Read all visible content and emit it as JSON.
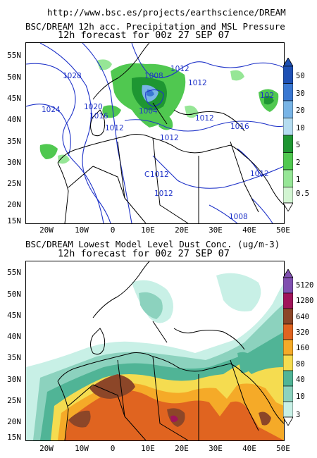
{
  "header": {
    "url": "http://www.bsc.es/projects/earthscience/DREAM"
  },
  "panel_top": {
    "title_line1": "BSC/DREAM 12h acc. Precipitation and MSL Pressure",
    "title_line2": "12h forecast for 00z 27 SEP 07",
    "colorbar": {
      "labels": [
        "50",
        "30",
        "20",
        "10",
        "5",
        "2",
        "1",
        "0.5"
      ],
      "colors": [
        "#1e50b4",
        "#3a78d2",
        "#78b4e6",
        "#b4dcf0",
        "#1e9632",
        "#50c850",
        "#96e696",
        "#d2f5d2"
      ]
    },
    "isobar_labels": [
      "1028",
      "1008",
      "1012",
      "1024",
      "1020",
      "1016",
      "1004",
      "1012",
      "1012",
      "1016",
      "1012",
      "1012",
      "1012",
      "1012",
      "1008",
      "1012",
      "102",
      "C"
    ]
  },
  "panel_bottom": {
    "title_line1": "BSC/DREAM Lowest Model Level Dust Conc. (ug/m-3)",
    "title_line2": "12h forecast for 00z 27 SEP 07",
    "colorbar": {
      "labels": [
        "5120",
        "1280",
        "640",
        "320",
        "160",
        "80",
        "40",
        "10",
        "3"
      ],
      "colors": [
        "#8050b0",
        "#a0145a",
        "#8c4628",
        "#e06420",
        "#f5aa28",
        "#f5dc50",
        "#50b496",
        "#8cd2be",
        "#c8f0e6"
      ]
    }
  },
  "axes": {
    "y_labels": [
      "55N",
      "50N",
      "45N",
      "40N",
      "35N",
      "30N",
      "25N",
      "20N",
      "15N"
    ],
    "x_labels": [
      "20W",
      "10W",
      "0",
      "10E",
      "20E",
      "30E",
      "40E",
      "50E"
    ]
  }
}
